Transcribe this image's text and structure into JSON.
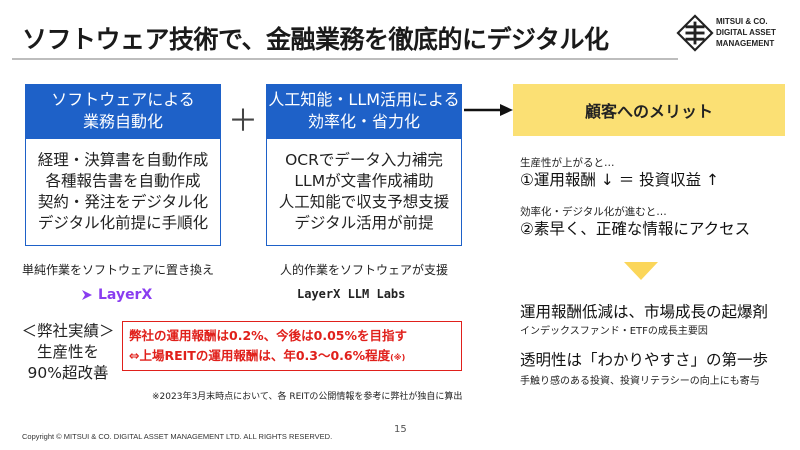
{
  "title": "ソフトウェア技術で、金融業務を徹底的にデジタル化",
  "logo": {
    "lines": [
      "MITSUI & CO.",
      "DIGITAL ASSET",
      "MANAGEMENT"
    ]
  },
  "left_box": {
    "header": [
      "ソフトウェアによる",
      "業務自動化"
    ],
    "items": [
      "経理・決算書を自動作成",
      "各種報告書を自動作成",
      "契約・発注をデジタル化",
      "デジタル化前提に手順化"
    ],
    "caption": "単純作業をソフトウェアに置き換え",
    "brand": "LayerX"
  },
  "middle_box": {
    "header": [
      "人工知能・LLM活用による",
      "効率化・省力化"
    ],
    "items": [
      "OCRでデータ入力補完",
      "LLMが文書作成補助",
      "人工知能で収支予想支援",
      "デジタル活用が前提"
    ],
    "caption": "人的作業をソフトウェアが支援",
    "brand": "LayerX LLM Labs"
  },
  "plus_sign": "＋",
  "merit": {
    "title": "顧客へのメリット",
    "point1_small": "生産性が上がると…",
    "point1": "①運用報酬 ↓ ＝ 投資収益 ↑",
    "point2_small": "効率化・デジタル化が進むと…",
    "point2": "②素早く、正確な情報にアクセス",
    "result1_title": "運用報酬低減は、市場成長の起爆剤",
    "result1_sub": "インデックスファンド・ETFの成長主要因",
    "result2_title": "透明性は「わかりやすさ」の第一歩",
    "result2_sub": "手触り感のある投資、投資リテラシーの向上にも寄与"
  },
  "track_record": [
    "＜弊社実績＞",
    "生産性を",
    "90%超改善"
  ],
  "fee": {
    "line1": "弊社の運用報酬は0.2%、今後は0.05%を目指す",
    "line2": "⇔上場REITの運用報酬は、年0.3～0.6%程度",
    "line2_mark": "(※)"
  },
  "note": "※2023年3月末時点において、各 REITの公開情報を参考に弊社が独自に算出",
  "copyright": "Copyright © MITSUI & CO. DIGITAL ASSET MANAGEMENT LTD. ALL RIGHTS RESERVED.",
  "page_number": "15",
  "colors": {
    "blue": "#1e61c8",
    "yellow": "#fbe074",
    "red": "#e0201b",
    "purple": "#8a3df0"
  }
}
